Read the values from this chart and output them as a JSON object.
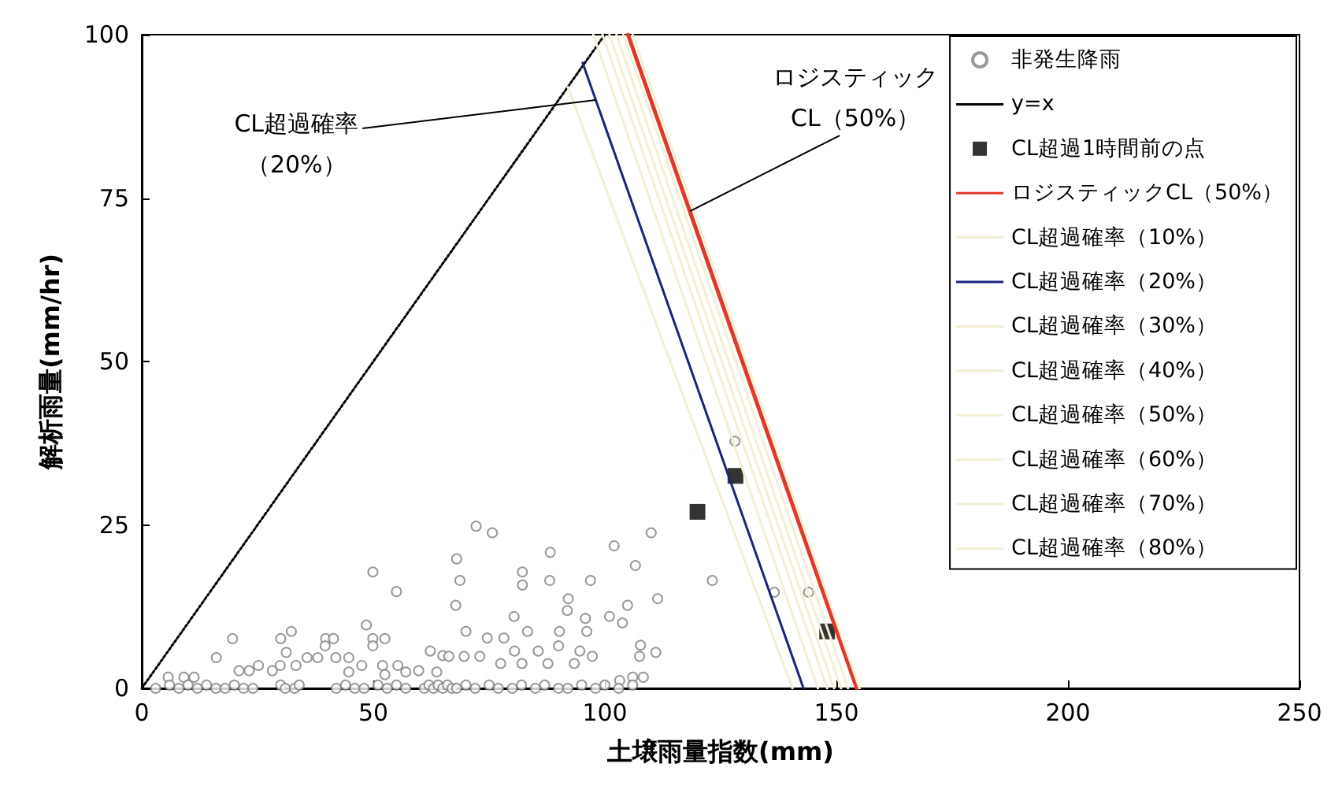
{
  "chart_data": {
    "type": "scatter",
    "xlabel": "土壌雨量指数(mm)",
    "ylabel": "解析雨量(mm/hr)",
    "xlim": [
      0,
      250
    ],
    "xticks": [
      0,
      50,
      100,
      150,
      200,
      250
    ],
    "ylim": [
      0,
      100
    ],
    "yticks": [
      0,
      25,
      50,
      75,
      100
    ],
    "grid": false,
    "legend": "top right",
    "annotations": [
      {
        "text": "CL超過確率（20%）",
        "x": 98,
        "y": 90
      },
      {
        "text": "ロジスティックCL（50%）",
        "x": 118.4,
        "y": 73
      }
    ],
    "series": [
      {
        "name": "非発生降雨",
        "marker": "circle",
        "color": "#808080",
        "x": [
          49.9,
          55,
          48.5,
          32.3,
          19.6,
          30,
          16.1,
          31.2,
          39.7,
          41.4,
          39.6,
          49.9,
          52.5,
          49.9,
          62.3,
          65,
          5.7,
          9.1,
          11.3,
          21,
          23.2,
          25.2,
          28.2,
          29.9,
          33.3,
          35.7,
          38,
          41.9,
          44.7,
          44.7,
          47.5,
          52,
          52.5,
          55.3,
          57,
          59.8,
          63.7,
          72.2,
          75.7,
          68,
          88.2,
          110,
          102,
          106.6,
          123.2,
          68.7,
          82.2,
          82.2,
          88.1,
          96.9,
          92.1,
          111.4,
          104.9,
          67.8,
          91.9,
          95.8,
          101,
          103.8,
          80.4,
          83.3,
          70,
          90.2,
          96.1,
          107.7,
          111,
          74.6,
          78.2,
          80.5,
          85.6,
          90,
          94.6,
          97.3,
          107.5,
          66.3,
          69.6,
          73,
          77.5,
          82.1,
          87.7,
          93.4,
          106,
          108.3,
          103.2,
          136.6,
          144,
          128.1,
          3,
          6,
          8,
          10,
          12,
          14,
          16,
          18,
          20,
          22,
          24,
          30,
          31,
          33,
          34,
          42,
          44,
          46,
          48,
          51,
          53,
          55,
          57,
          61,
          62,
          63,
          64,
          65,
          66,
          67,
          68,
          70,
          72,
          75,
          77,
          80,
          82,
          85,
          87,
          90,
          92,
          95,
          98,
          100,
          103,
          106
        ],
        "values": [
          17.8,
          14.8,
          9.7,
          8.7,
          7.6,
          7.6,
          4.7,
          5.5,
          7.6,
          7.6,
          6.5,
          7.6,
          7.6,
          6.5,
          5.7,
          5,
          1.7,
          1.7,
          1.7,
          2.7,
          2.7,
          3.5,
          2.7,
          3.5,
          3.5,
          4.7,
          4.7,
          4.7,
          4.7,
          2.5,
          3.5,
          3.5,
          2.1,
          3.5,
          2.5,
          2.7,
          2.5,
          24.8,
          23.8,
          19.8,
          20.8,
          23.8,
          21.8,
          18.8,
          16.5,
          16.5,
          17.8,
          15.8,
          16.5,
          16.5,
          13.7,
          13.7,
          12.7,
          12.7,
          11.9,
          10.7,
          11,
          10,
          11,
          8.7,
          8.7,
          8.7,
          8.7,
          6.6,
          5.5,
          7.7,
          7.7,
          5.7,
          5.7,
          6.5,
          5.7,
          4.9,
          4.9,
          4.9,
          4.9,
          4.9,
          3.8,
          3.8,
          3.8,
          3.8,
          1.7,
          1.7,
          1.2,
          14.7,
          14.7,
          37.8,
          0,
          0.5,
          0,
          0.5,
          0,
          0.5,
          0,
          0,
          0.5,
          0,
          0,
          0.5,
          0,
          0,
          0.5,
          0,
          0.5,
          0,
          0,
          0.5,
          0,
          0.5,
          0,
          0,
          0.5,
          0,
          0.5,
          0,
          0.5,
          0,
          0,
          0.5,
          0,
          0.5,
          0,
          0,
          0.5,
          0,
          0.5,
          0,
          0,
          0.5,
          0,
          0.5,
          0,
          0.5
        ]
      },
      {
        "name": "y=x",
        "type": "line",
        "line_style": "dotted",
        "marker": "none",
        "color": "#000000",
        "x": [
          0,
          100
        ],
        "values": [
          0,
          100
        ]
      },
      {
        "name": "CL超過1時間前の点",
        "marker": "square",
        "color": "#000000",
        "x": [
          120,
          128.2,
          148
        ],
        "values": [
          27,
          32.5,
          8.7
        ]
      },
      {
        "name": "ロジスティックCL（50%）",
        "type": "line",
        "line_style": "solid",
        "marker": "none",
        "color": "#e0392b",
        "x": [
          105,
          154.4
        ],
        "values": [
          100,
          0
        ]
      },
      {
        "name": "CL超過確率（10%）",
        "type": "line",
        "line_style": "solid",
        "marker": "none",
        "color": "#f3efd2",
        "x": [
          92,
          140.5
        ],
        "values": [
          92,
          0
        ]
      },
      {
        "name": "CL超過確率（20%）",
        "type": "line",
        "line_style": "solid",
        "marker": "none",
        "color": "#1a237e",
        "x": [
          95.2,
          142.9
        ],
        "values": [
          95.7,
          0
        ]
      },
      {
        "name": "CL超過確率（30%）",
        "type": "line",
        "line_style": "solid",
        "marker": "none",
        "color": "#f3efd2",
        "x": [
          97.5,
          146
        ],
        "values": [
          100,
          0
        ]
      },
      {
        "name": "CL超過確率（40%）",
        "type": "line",
        "line_style": "solid",
        "marker": "none",
        "color": "#f3efd2",
        "x": [
          99.5,
          148
        ],
        "values": [
          100,
          0
        ]
      },
      {
        "name": "CL超過確率（50%）",
        "type": "line",
        "line_style": "solid",
        "marker": "none",
        "color": "#f3efd2",
        "x": [
          101,
          149.5
        ],
        "values": [
          100,
          0
        ]
      },
      {
        "name": "CL超過確率（60%）",
        "type": "line",
        "line_style": "solid",
        "marker": "none",
        "color": "#f3efd2",
        "x": [
          102.5,
          151
        ],
        "values": [
          100,
          0
        ]
      },
      {
        "name": "CL超過確率（70%）",
        "type": "line",
        "line_style": "solid",
        "marker": "none",
        "color": "#f3efd2",
        "x": [
          104,
          152.5
        ],
        "values": [
          100,
          0
        ]
      },
      {
        "name": "CL超過確率（80%）",
        "type": "line",
        "line_style": "solid",
        "marker": "none",
        "color": "#f3efd2",
        "x": [
          106,
          155
        ],
        "values": [
          100,
          0
        ]
      }
    ]
  }
}
